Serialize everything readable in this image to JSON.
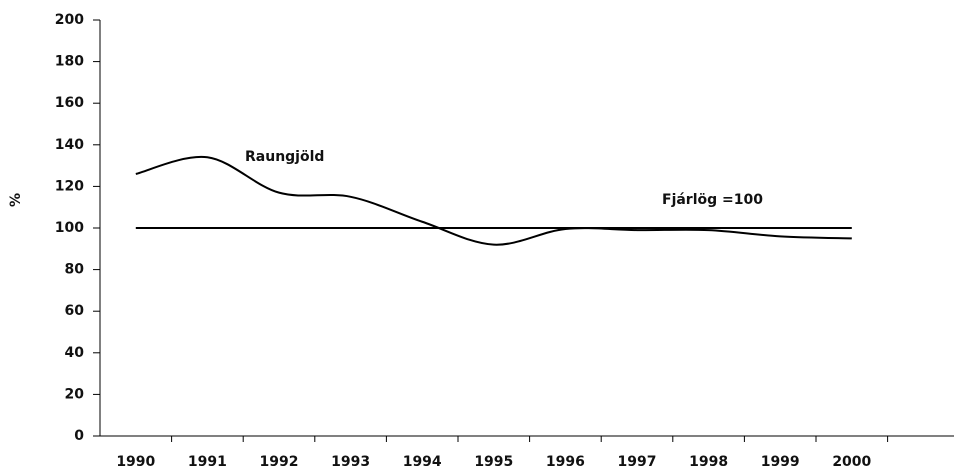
{
  "chart_data": {
    "type": "line",
    "y_label": "%",
    "categories": [
      "1990",
      "1991",
      "1992",
      "1993",
      "1994",
      "1995",
      "1996",
      "1997",
      "1998",
      "1999",
      "2000",
      null
    ],
    "series": [
      {
        "name": "Raungjöld",
        "color": "#000000",
        "values": [
          126,
          134,
          117,
          115,
          103,
          92,
          99.5,
          99,
          99,
          96,
          95,
          null
        ]
      },
      {
        "name": "Fjárlög =100",
        "color": "#000000",
        "values": [
          100,
          100,
          100,
          100,
          100,
          100,
          100,
          100,
          100,
          100,
          100,
          null
        ]
      }
    ],
    "ylim": [
      0,
      200
    ],
    "yticks": [
      0,
      20,
      40,
      60,
      80,
      100,
      120,
      140,
      160,
      180,
      200
    ],
    "grid": false
  }
}
